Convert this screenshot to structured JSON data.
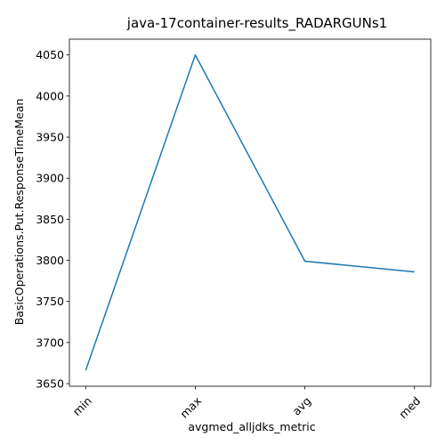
{
  "chart_data": {
    "type": "line",
    "title": "java-17container-results_RADARGUNs1",
    "xlabel": "avgmed_alljdks_metric",
    "ylabel": "BasicOperations.Put.ResponseTimeMean",
    "categories": [
      "min",
      "max",
      "avg",
      "med"
    ],
    "series": [
      {
        "values": [
          3666,
          4050,
          3799,
          3786
        ]
      }
    ],
    "yticks": [
      3650,
      3700,
      3750,
      3800,
      3850,
      3900,
      3950,
      4000,
      4050
    ],
    "ylim": [
      3646.8,
      4069.2
    ],
    "grid": false,
    "line_color": "#1f77b4"
  }
}
